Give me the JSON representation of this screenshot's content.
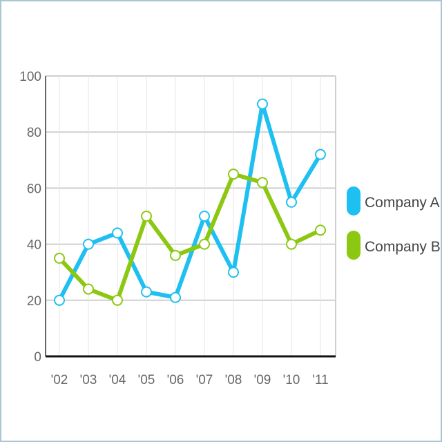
{
  "chart_data": {
    "type": "line",
    "title": "",
    "xlabel": "",
    "ylabel": "",
    "categories": [
      "'02",
      "'03",
      "'04",
      "'05",
      "'06",
      "'07",
      "'08",
      "'09",
      "'10",
      "'11"
    ],
    "ylim": [
      0,
      100
    ],
    "yticks": [
      "0",
      "20",
      "40",
      "60",
      "80",
      "100"
    ],
    "grid": true,
    "legend_position": "right",
    "series": [
      {
        "name": "Company A",
        "color": "#1ec0f2",
        "values": [
          20,
          40,
          44,
          23,
          21,
          50,
          30,
          90,
          55,
          72
        ]
      },
      {
        "name": "Company B",
        "color": "#8cc812",
        "values": [
          35,
          24,
          20,
          50,
          36,
          40,
          65,
          62,
          40,
          45
        ]
      }
    ]
  }
}
